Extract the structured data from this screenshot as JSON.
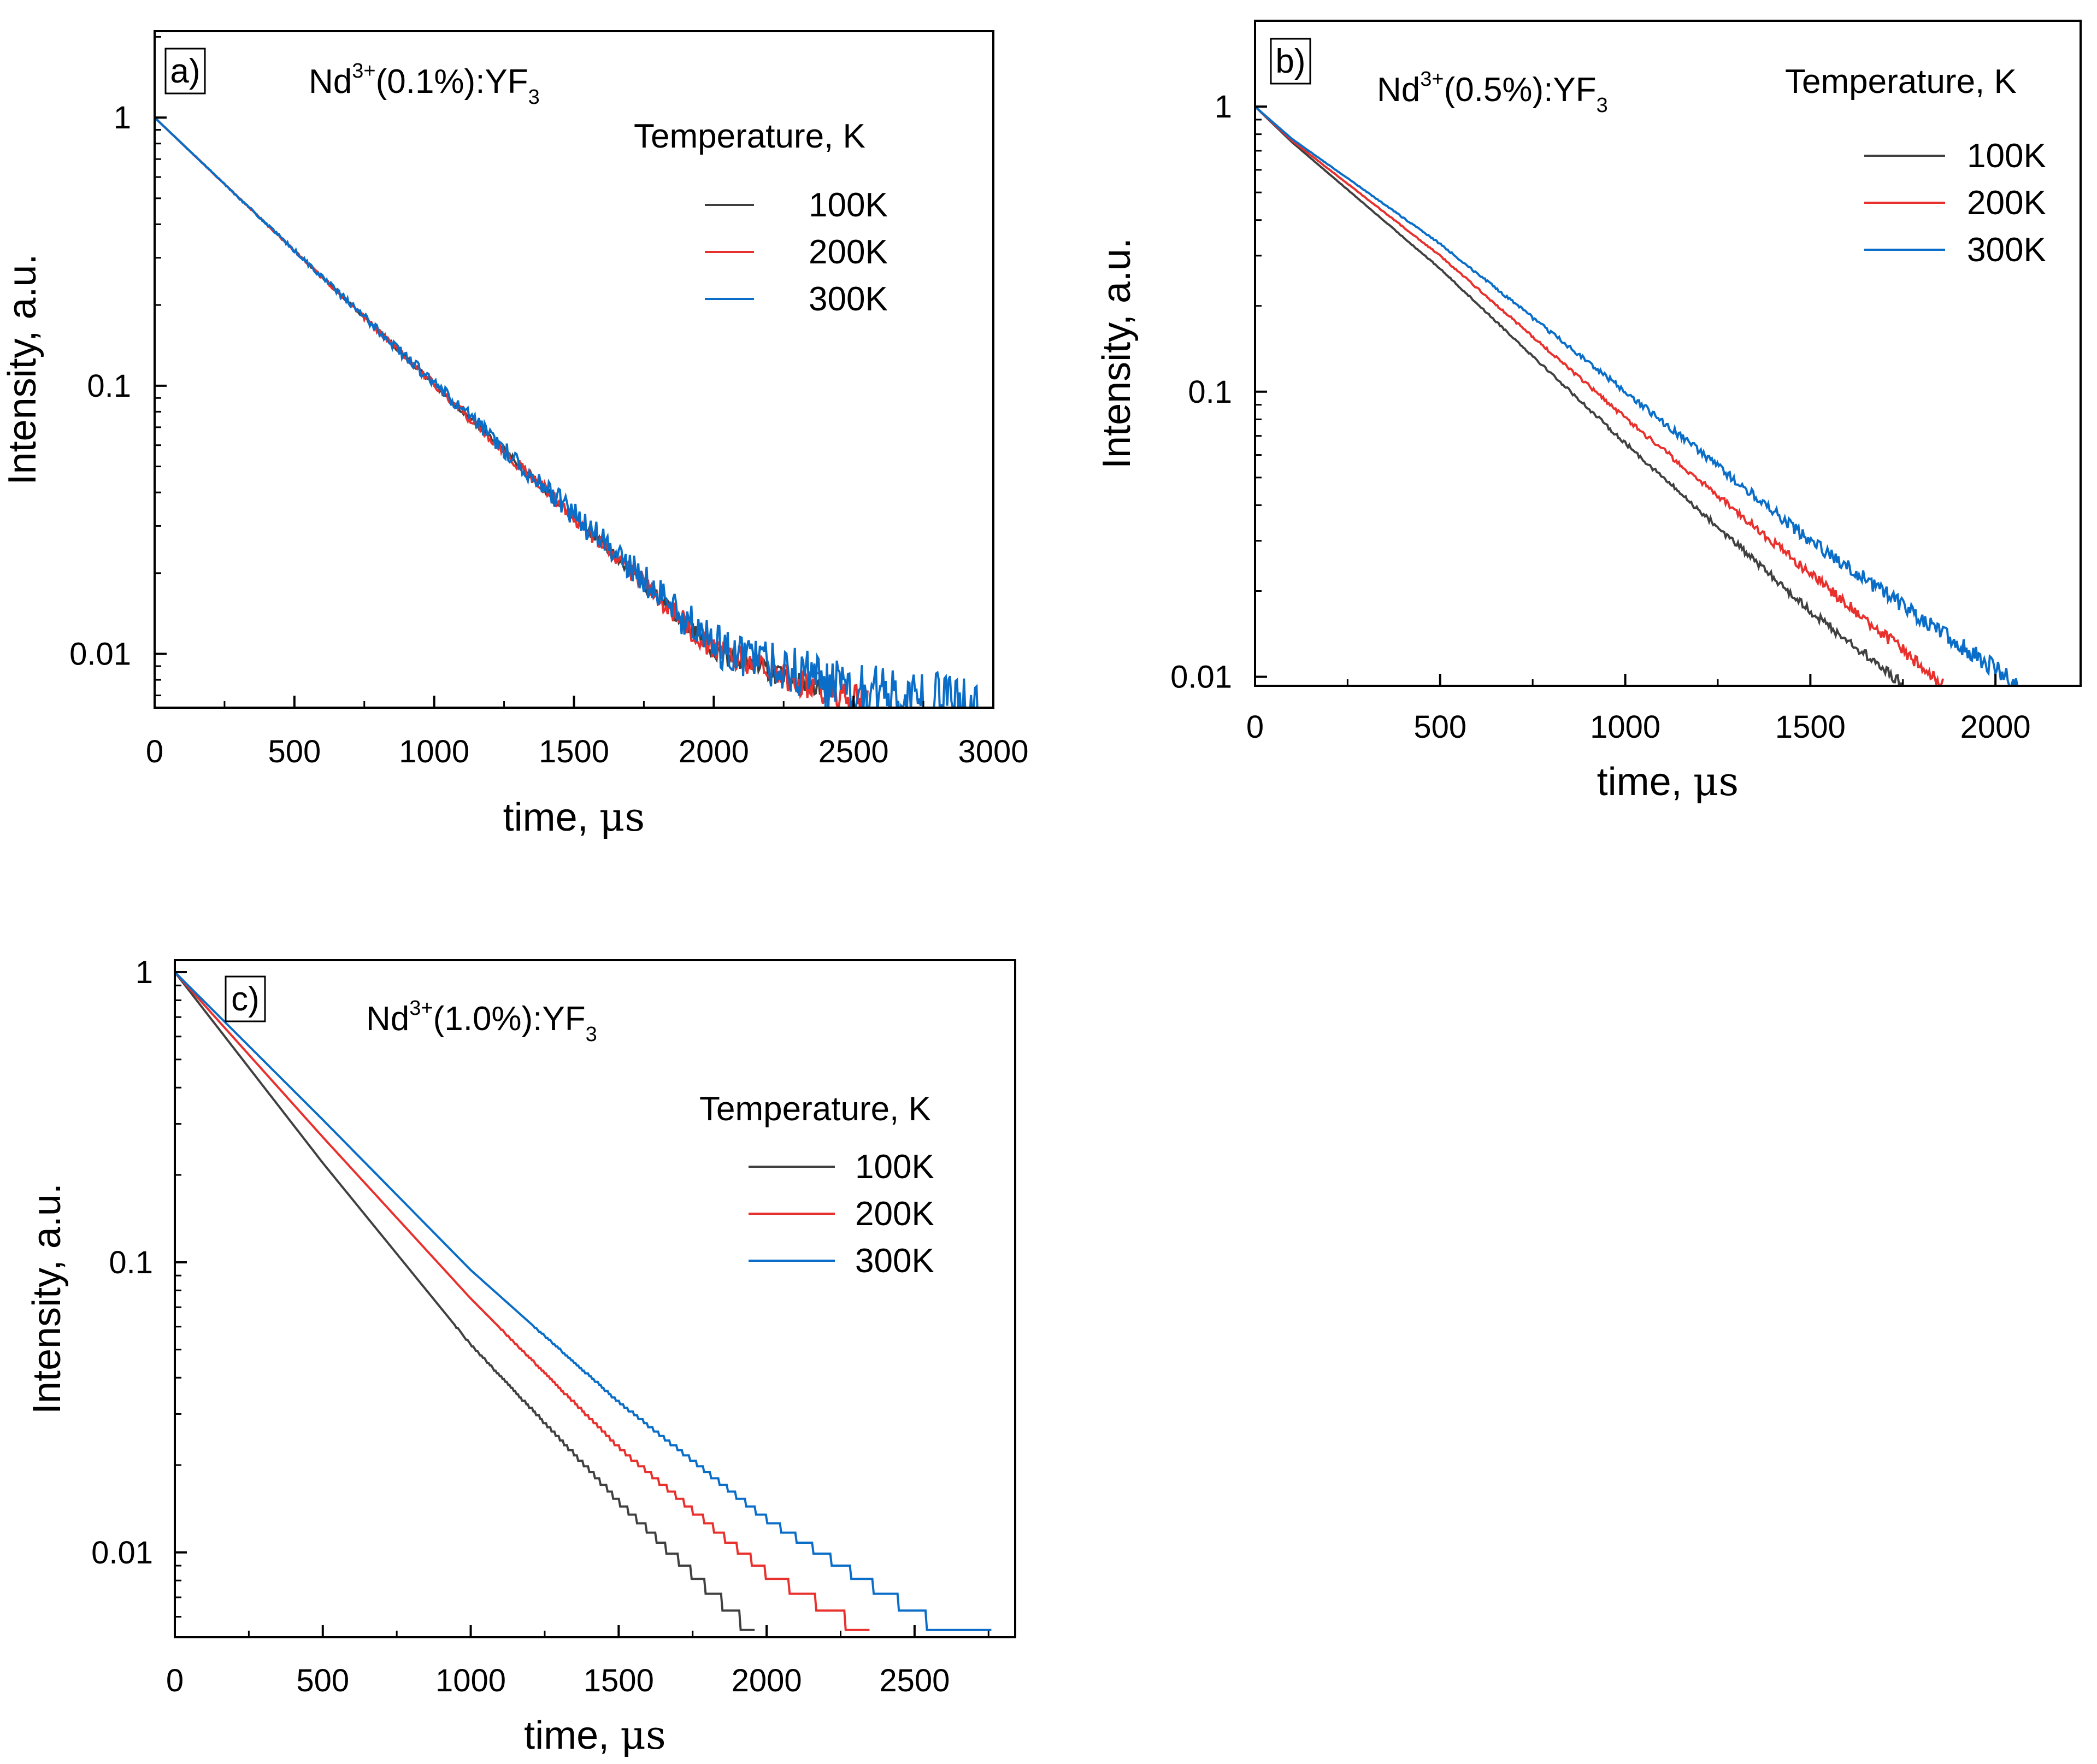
{
  "chart_data": [
    {
      "type": "line",
      "panel_label": "a)",
      "sample": {
        "prefix": "Nd",
        "sup": "3+",
        "middle": "(0.1%):YF",
        "sub": "3"
      },
      "xlabel": {
        "text": "time, ",
        "unit": "μs"
      },
      "ylabel": "Intensity, a.u.",
      "yscale": "log",
      "xlim": [
        0,
        3000
      ],
      "ylim": [
        0.0063,
        2.1
      ],
      "xticks": [
        0,
        500,
        1000,
        1500,
        2000,
        2500,
        3000
      ],
      "xtick_labels": [
        "0",
        "500",
        "1000",
        "1500",
        "2000",
        "2500",
        "3000"
      ],
      "yticks": [
        1,
        0.1,
        0.01
      ],
      "ytick_labels": [
        "1",
        "0.1",
        "0.01"
      ],
      "legend_title": "Temperature, K",
      "series": [
        {
          "name": "100K",
          "color": "#404040",
          "points": [
            [
              0,
              1.0
            ],
            [
              500,
              0.319
            ],
            [
              1000,
              0.101
            ],
            [
              1500,
              0.0323
            ],
            [
              2000,
              0.0103
            ],
            [
              2400,
              0.0071
            ]
          ],
          "noise": 0.08
        },
        {
          "name": "200K",
          "color": "#e8302d",
          "points": [
            [
              0,
              1.0
            ],
            [
              500,
              0.319
            ],
            [
              1000,
              0.101
            ],
            [
              1500,
              0.0323
            ],
            [
              2000,
              0.0103
            ],
            [
              2550,
              0.0065
            ]
          ],
          "noise": 0.12
        },
        {
          "name": "300K",
          "color": "#0a6ec8",
          "points": [
            [
              0,
              1.0
            ],
            [
              500,
              0.319
            ],
            [
              1000,
              0.102
            ],
            [
              1500,
              0.033
            ],
            [
              2000,
              0.0108
            ],
            [
              2500,
              0.0072
            ],
            [
              2950,
              0.0068
            ]
          ],
          "noise": 0.2
        }
      ]
    },
    {
      "type": "line",
      "panel_label": "b)",
      "sample": {
        "prefix": "Nd",
        "sup": "3+",
        "middle": "(0.5%):YF",
        "sub": "3"
      },
      "xlabel": {
        "text": "time, ",
        "unit": "μs"
      },
      "ylabel": "Intensity, a.u.",
      "yscale": "log",
      "xlim": [
        0,
        2230
      ],
      "ylim": [
        0.0093,
        2.0
      ],
      "xticks": [
        0,
        500,
        1000,
        1500,
        2000
      ],
      "xtick_labels": [
        "0",
        "500",
        "1000",
        "1500",
        "2000"
      ],
      "yticks": [
        1,
        0.1,
        0.01
      ],
      "ytick_labels": [
        "1",
        "0.1",
        "0.01"
      ],
      "legend_title": "Temperature, K",
      "series": [
        {
          "name": "100K",
          "color": "#404040",
          "points": [
            [
              0,
              1.0
            ],
            [
              100,
              0.75
            ],
            [
              500,
              0.27
            ],
            [
              1000,
              0.066
            ],
            [
              1500,
              0.017
            ],
            [
              1750,
              0.0094
            ]
          ],
          "noise": 0.04
        },
        {
          "name": "200K",
          "color": "#e8302d",
          "points": [
            [
              0,
              1.0
            ],
            [
              100,
              0.76
            ],
            [
              500,
              0.3
            ],
            [
              1000,
              0.081
            ],
            [
              1500,
              0.023
            ],
            [
              1860,
              0.0094
            ]
          ],
          "noise": 0.05
        },
        {
          "name": "300K",
          "color": "#0a6ec8",
          "points": [
            [
              0,
              1.0
            ],
            [
              100,
              0.77
            ],
            [
              500,
              0.33
            ],
            [
              1000,
              0.1
            ],
            [
              1500,
              0.03
            ],
            [
              2060,
              0.0094
            ]
          ],
          "noise": 0.07
        }
      ]
    },
    {
      "type": "line",
      "panel_label": "c)",
      "sample": {
        "prefix": "Nd",
        "sup": "3+",
        "middle": "(1.0%):YF",
        "sub": "3"
      },
      "xlabel": {
        "text": "time, ",
        "unit": "μs"
      },
      "ylabel": "Intensity, a.u.",
      "yscale": "log",
      "xlim": [
        0,
        2840
      ],
      "ylim": [
        0.0051,
        1.1
      ],
      "xticks": [
        0,
        500,
        1000,
        1500,
        2000,
        2500
      ],
      "xtick_labels": [
        "0",
        "500",
        "1000",
        "1500",
        "2000",
        "2500"
      ],
      "yticks": [
        1,
        0.1,
        0.01
      ],
      "ytick_labels": [
        "1",
        "0.1",
        "0.01"
      ],
      "legend_title": "Temperature, K",
      "series": [
        {
          "name": "100K",
          "color": "#404040",
          "points": [
            [
              0,
              1.0
            ],
            [
              500,
              0.22
            ],
            [
              1000,
              0.052
            ],
            [
              1500,
              0.015
            ],
            [
              1960,
              0.0052
            ]
          ],
          "noise": 0.0
        },
        {
          "name": "200K",
          "color": "#e8302d",
          "points": [
            [
              0,
              1.0
            ],
            [
              500,
              0.27
            ],
            [
              1000,
              0.075
            ],
            [
              1500,
              0.023
            ],
            [
              2000,
              0.0085
            ],
            [
              2350,
              0.0052
            ]
          ],
          "noise": 0.0
        },
        {
          "name": "300K",
          "color": "#0a6ec8",
          "points": [
            [
              0,
              1.0
            ],
            [
              500,
              0.31
            ],
            [
              1000,
              0.094
            ],
            [
              1500,
              0.033
            ],
            [
              2000,
              0.013
            ],
            [
              2570,
              0.0056
            ],
            [
              2760,
              0.0052
            ]
          ],
          "noise": 0.0
        }
      ]
    }
  ]
}
